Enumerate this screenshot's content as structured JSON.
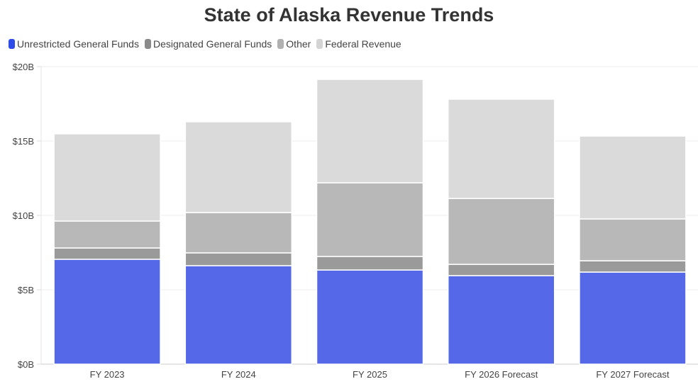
{
  "chart_data": {
    "type": "bar",
    "stacked": true,
    "title": "State of Alaska Revenue Trends",
    "xlabel": "",
    "ylabel": "",
    "ylim": [
      0,
      20
    ],
    "yticks": [
      0,
      5,
      10,
      15,
      20
    ],
    "ytick_labels": [
      "$0B",
      "$5B",
      "$10B",
      "$15B",
      "$20B"
    ],
    "grid": true,
    "legend_position": "top-left",
    "categories": [
      "FY 2023",
      "FY 2024",
      "FY 2025",
      "FY 2026 Forecast",
      "FY 2027 Forecast"
    ],
    "series": [
      {
        "name": "Unrestricted General Funds",
        "color": "#5468e8",
        "legend_color": "#2f4be8",
        "values": [
          7.05,
          6.62,
          6.33,
          5.95,
          6.19
        ]
      },
      {
        "name": "Designated General Funds",
        "color": "#9a9a9a",
        "legend_color": "#8a8a8a",
        "values": [
          0.76,
          0.86,
          0.91,
          0.76,
          0.76
        ]
      },
      {
        "name": "Other",
        "color": "#b8b8b8",
        "legend_color": "#b0b0b0",
        "values": [
          1.81,
          2.71,
          4.95,
          4.43,
          2.81
        ]
      },
      {
        "name": "Federal Revenue",
        "color": "#dadada",
        "legend_color": "#d4d4d4",
        "values": [
          5.86,
          6.1,
          6.95,
          6.67,
          5.57
        ]
      }
    ]
  }
}
